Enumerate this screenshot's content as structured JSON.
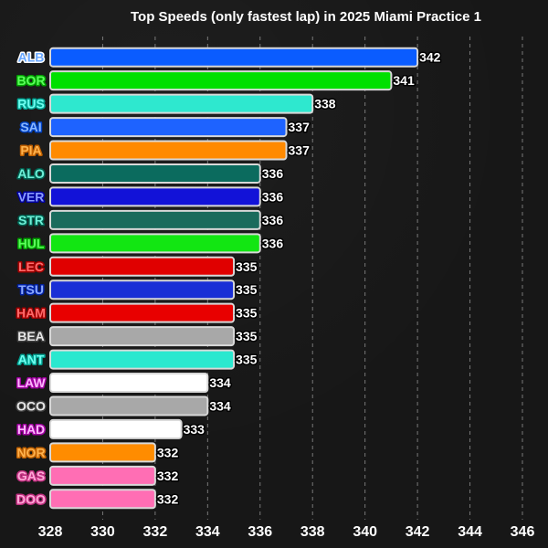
{
  "chart_data": {
    "type": "bar",
    "orientation": "horizontal",
    "title": "Top Speeds (only fastest lap) in 2025 Miami Practice 1",
    "xlabel": "",
    "ylabel": "",
    "xlim": [
      328,
      346
    ],
    "xticks": [
      328,
      330,
      332,
      334,
      336,
      338,
      340,
      342,
      344,
      346
    ],
    "grid": "vertical dashed",
    "categories": [
      "ALB",
      "BOR",
      "RUS",
      "SAI",
      "PIA",
      "ALO",
      "VER",
      "STR",
      "HUL",
      "LEC",
      "TSU",
      "HAM",
      "BEA",
      "ANT",
      "LAW",
      "OCO",
      "HAD",
      "NOR",
      "GAS",
      "DOO"
    ],
    "values": [
      342,
      341,
      338,
      337,
      337,
      336,
      336,
      336,
      336,
      335,
      335,
      335,
      335,
      335,
      334,
      334,
      333,
      332,
      332,
      332
    ],
    "bar_colors": [
      "#0a5cff",
      "#00e000",
      "#2ee8cf",
      "#1e63ff",
      "#ff8a00",
      "#0b6b5e",
      "#1212d8",
      "#1a6b5c",
      "#12e612",
      "#e00000",
      "#1a2fd6",
      "#e80000",
      "#a8a8a8",
      "#2ae8cf",
      "#ffffff",
      "#a8a8a8",
      "#ffffff",
      "#ff8c00",
      "#ff6eb4",
      "#ff6eb4"
    ],
    "label_colors": [
      "#6aa8ff",
      "#5cff5c",
      "#6ffff0",
      "#8ab8ff",
      "#ffb24d",
      "#6ff0d8",
      "#8a9cff",
      "#6ff0d8",
      "#5cff5c",
      "#ff6a6a",
      "#8aa8ff",
      "#ff6a6a",
      "#e8e8e8",
      "#6ffff0",
      "#ffb8ff",
      "#e8e8e8",
      "#ffb8ff",
      "#ffb24d",
      "#ffa8d8",
      "#ffa8d8"
    ],
    "label_outline_colors": [
      "#ffffff",
      "#00a000",
      "#00a090",
      "#0040c0",
      "#c06000",
      "#006050",
      "#0000a0",
      "#006050",
      "#00a000",
      "#a00000",
      "#0020a0",
      "#a00000",
      "#404040",
      "#00a090",
      "#a000a0",
      "#404040",
      "#a000a0",
      "#c06000",
      "#c03080",
      "#c03080"
    ]
  }
}
